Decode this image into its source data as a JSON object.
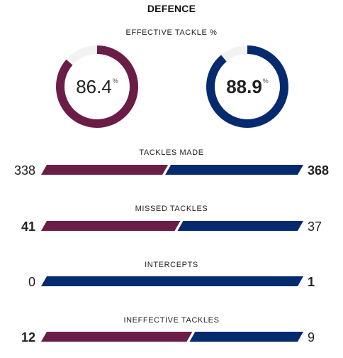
{
  "section_title": "DEFENCE",
  "colors": {
    "home": "#6b1e45",
    "away": "#062a6e",
    "track": "#f2f2f2"
  },
  "effective_tackle": {
    "label": "EFFECTIVE TACKLE %",
    "home": {
      "value": "86.4",
      "fraction": 0.864
    },
    "away": {
      "value": "88.9",
      "fraction": 0.889
    },
    "unit": "%"
  },
  "stats": [
    {
      "label": "TACKLES MADE",
      "home": 338,
      "away": 368
    },
    {
      "label": "MISSED TACKLES",
      "home": 41,
      "away": 37
    },
    {
      "label": "INTERCEPTS",
      "home": 0,
      "away": 1
    },
    {
      "label": "INEFFECTIVE TACKLES",
      "home": 12,
      "away": 9
    }
  ]
}
